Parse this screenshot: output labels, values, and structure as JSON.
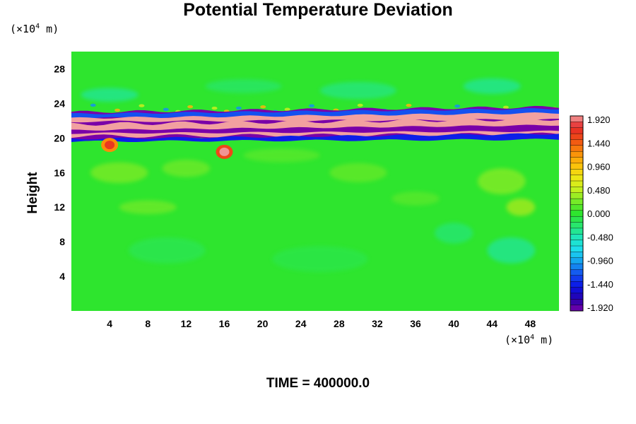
{
  "chart_data": {
    "type": "heatmap",
    "title": "Potential Temperature Deviation",
    "ylabel": "Height",
    "xlabel": "",
    "x_unit": {
      "prefix": "(×10",
      "exp": "4",
      "suffix": " m)"
    },
    "y_unit": {
      "prefix": "(×10",
      "exp": "4",
      "suffix": " m)"
    },
    "xlim": [
      0,
      51
    ],
    "ylim": [
      0,
      30
    ],
    "xticks": [
      "4",
      "8",
      "12",
      "16",
      "20",
      "24",
      "28",
      "32",
      "36",
      "40",
      "44",
      "48"
    ],
    "xtick_values": [
      4,
      8,
      12,
      16,
      20,
      24,
      28,
      32,
      36,
      40,
      44,
      48
    ],
    "yticks": [
      "4",
      "8",
      "12",
      "16",
      "20",
      "24",
      "28"
    ],
    "ytick_values": [
      4,
      8,
      12,
      16,
      20,
      24,
      28
    ],
    "colorbar": {
      "labels": [
        "1.920",
        "1.440",
        "0.960",
        "0.480",
        "0.000",
        "-0.480",
        "-0.960",
        "-1.440",
        "-1.920"
      ],
      "min": -1.92,
      "max": 1.92,
      "levels": 33
    },
    "background_value": 0.0,
    "features": [
      {
        "name": "positive band",
        "value": 1.92,
        "x": [
          0,
          51
        ],
        "y": [
          20.2,
          21.6
        ]
      },
      {
        "name": "negative band",
        "value": -1.92,
        "x": [
          0,
          51
        ],
        "y": [
          19.8,
          23.0
        ]
      },
      {
        "name": "warm blob",
        "value": 1.5,
        "x": 16,
        "y": 18.4
      },
      {
        "name": "warm blob",
        "value": 1.2,
        "x": 4,
        "y": 19.2
      }
    ],
    "colors": {
      "min": "#7a00a8",
      "zero": "#2ee52e",
      "max": "#f2a0a0",
      "background": "#2ee52e"
    }
  },
  "footer": "TIME = 400000.0"
}
